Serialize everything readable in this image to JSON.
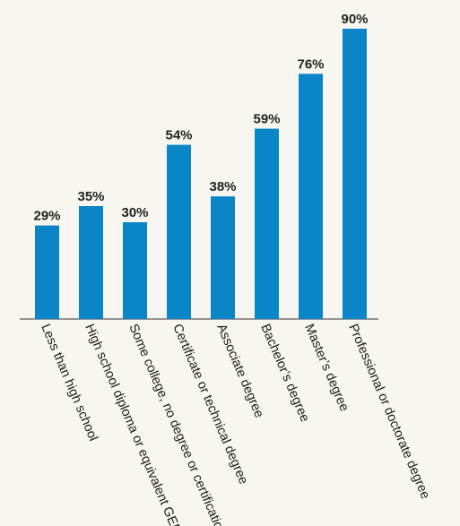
{
  "chart_data": {
    "type": "bar",
    "categories": [
      "Less than high school",
      "High school diploma or equivalent GED",
      "Some college, no degree or certification",
      "Certificate or technical degree",
      "Associate degree",
      "Bachelor’s degree",
      "Master’s degree",
      "Professional or doctorate degree"
    ],
    "values": [
      29,
      35,
      30,
      54,
      38,
      59,
      76,
      90
    ],
    "value_labels": [
      "29%",
      "35%",
      "30%",
      "54%",
      "38%",
      "59%",
      "76%",
      "90%"
    ],
    "ylim": [
      0,
      100
    ],
    "grid": false,
    "bar_color": "#0a85c8",
    "background_color": "#f8f6f0"
  }
}
